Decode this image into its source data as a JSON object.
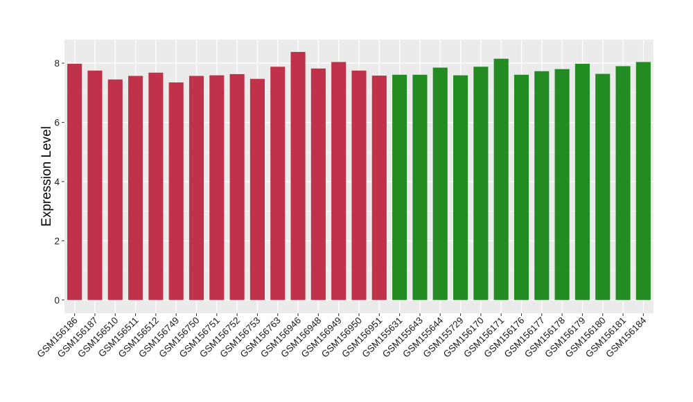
{
  "chart_data": {
    "type": "bar",
    "title": "",
    "xlabel": "",
    "ylabel": "Expression Level",
    "ylim": [
      0,
      8.8
    ],
    "yticks": [
      0,
      2,
      4,
      6,
      8
    ],
    "grid": true,
    "legend": "none",
    "categories": [
      "GSM156186",
      "GSM156187",
      "GSM156510",
      "GSM156511",
      "GSM156512",
      "GSM156749",
      "GSM156750",
      "GSM156751",
      "GSM156752",
      "GSM156753",
      "GSM156763",
      "GSM156946",
      "GSM156948",
      "GSM156949",
      "GSM156950",
      "GSM156951",
      "GSM155631",
      "GSM155643",
      "GSM155644",
      "GSM155729",
      "GSM156170",
      "GSM156171",
      "GSM156176",
      "GSM156177",
      "GSM156178",
      "GSM156179",
      "GSM156180",
      "GSM156181",
      "GSM156184"
    ],
    "values": [
      7.98,
      7.75,
      7.45,
      7.57,
      7.68,
      7.35,
      7.57,
      7.59,
      7.63,
      7.47,
      7.88,
      8.38,
      7.82,
      8.04,
      7.75,
      7.58,
      7.61,
      7.61,
      7.85,
      7.59,
      7.88,
      8.15,
      7.61,
      7.73,
      7.8,
      7.98,
      7.64,
      7.9,
      8.04
    ],
    "bar_colors": [
      "#c0314a",
      "#c0314a",
      "#c0314a",
      "#c0314a",
      "#c0314a",
      "#c0314a",
      "#c0314a",
      "#c0314a",
      "#c0314a",
      "#c0314a",
      "#c0314a",
      "#c0314a",
      "#c0314a",
      "#c0314a",
      "#c0314a",
      "#c0314a",
      "#228b22",
      "#228b22",
      "#228b22",
      "#228b22",
      "#228b22",
      "#228b22",
      "#228b22",
      "#228b22",
      "#228b22",
      "#228b22",
      "#228b22",
      "#228b22",
      "#228b22"
    ],
    "panel_background": "#ebebeb",
    "grid_color": "#ffffff"
  }
}
